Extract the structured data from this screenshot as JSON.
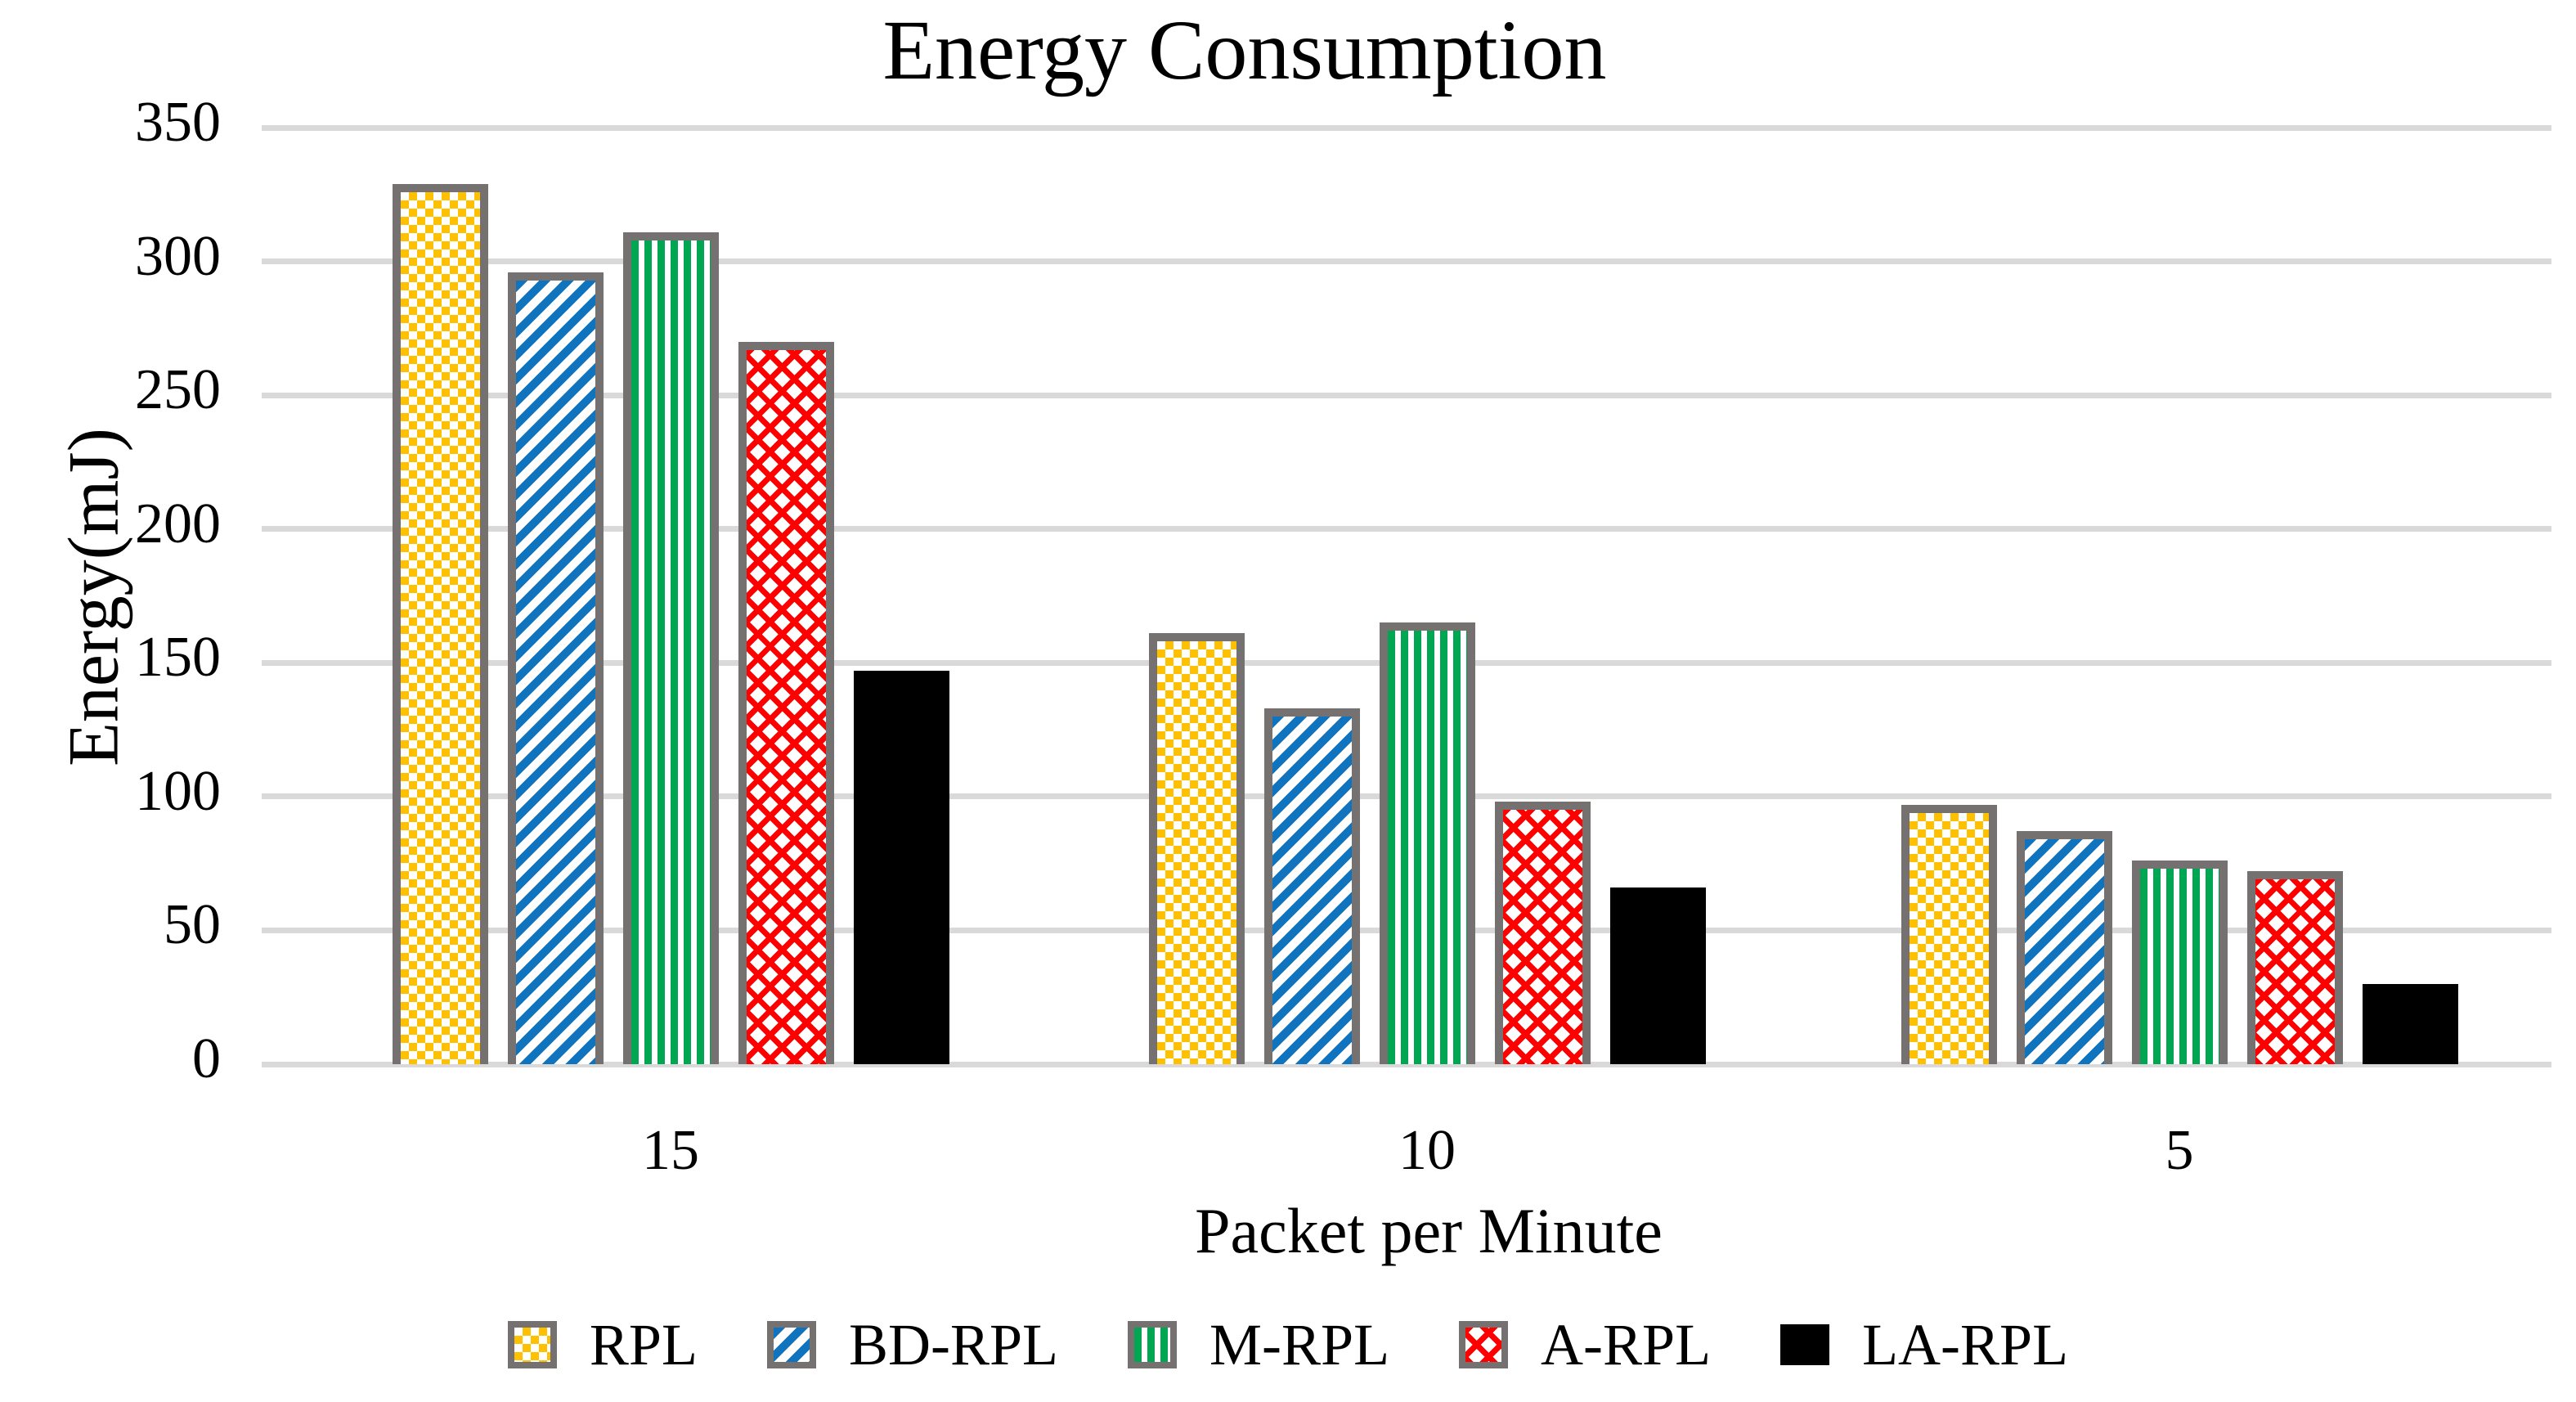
{
  "title": "Energy Consumption",
  "y_axis": {
    "label": "Energy(mJ)",
    "ticks": [
      350,
      300,
      250,
      200,
      150,
      100,
      50,
      0
    ]
  },
  "x_axis": {
    "label": "Packet per Minute",
    "categories": [
      "15",
      "10",
      "5"
    ]
  },
  "chart_data": {
    "type": "bar",
    "title": "Energy Consumption",
    "xlabel": "Packet per Minute",
    "ylabel": "Energy(mJ)",
    "categories": [
      "15",
      "10",
      "5"
    ],
    "series": [
      {
        "name": "RPL",
        "values": [
          329,
          161,
          97
        ],
        "color": "#FFC000",
        "pattern": "checker"
      },
      {
        "name": "BD-RPL",
        "values": [
          296,
          133,
          87
        ],
        "color": "#0F73BE",
        "pattern": "diag"
      },
      {
        "name": "M-RPL",
        "values": [
          311,
          165,
          76
        ],
        "color": "#00A651",
        "pattern": "vert"
      },
      {
        "name": "A-RPL",
        "values": [
          270,
          98,
          72
        ],
        "color": "#FF0000",
        "pattern": "zigzag"
      },
      {
        "name": "LA-RPL",
        "values": [
          147,
          66,
          30
        ],
        "color": "#000000",
        "pattern": "solid"
      }
    ],
    "ylim": [
      0,
      350
    ],
    "grid": true,
    "legend_position": "bottom"
  },
  "colors": {
    "gridline": "#D9D9D9",
    "bar_border": "#757171",
    "text": "#000000",
    "background": "#FFFFFF"
  }
}
